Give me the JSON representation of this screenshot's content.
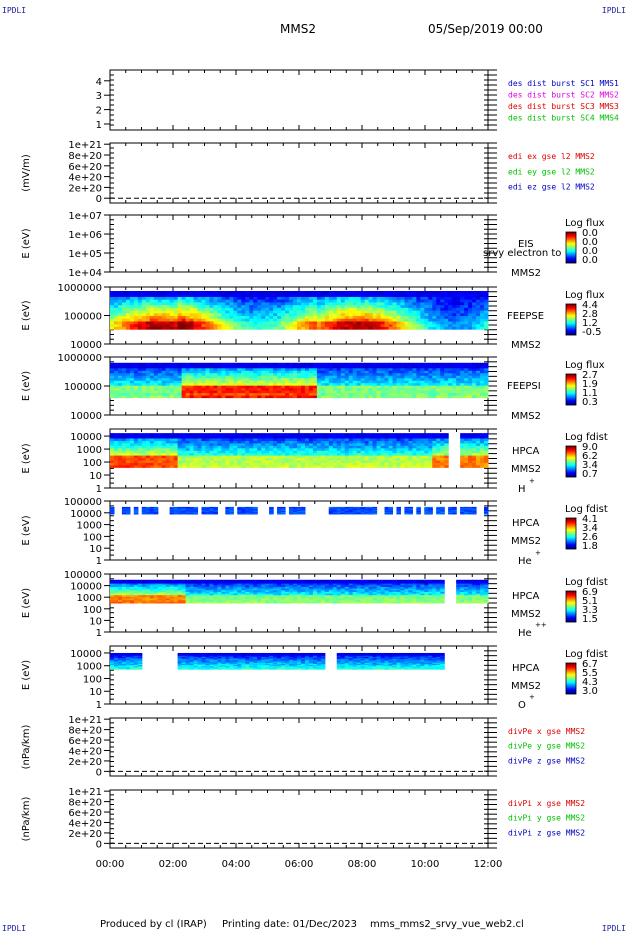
{
  "header": {
    "mission": "MMS2",
    "date": "05/Sep/2019 00:00",
    "corner_label": "IPDLI"
  },
  "footer": {
    "producer": "Produced by cl (IRAP)",
    "printing": "Printing date: 01/Dec/2023",
    "filename": "mms_mms2_srvy_vue_web2.cl"
  },
  "x_axis": {
    "ticks": [
      "00:00",
      "02:00",
      "04:00",
      "06:00",
      "08:00",
      "10:00",
      "12:00"
    ]
  },
  "colors": {
    "blue": "#0000c0",
    "magenta": "#e000e0",
    "red": "#e00000",
    "green": "#00c000"
  },
  "chart_data": [
    {
      "type": "line",
      "id": "burst",
      "y_ticks": [
        "1",
        "2",
        "3",
        "4"
      ],
      "legend": [
        {
          "label": "des dist burst SC1 MMS1",
          "color": "#0000c0"
        },
        {
          "label": "des dist burst SC2 MMS2",
          "color": "#e000e0"
        },
        {
          "label": "des dist burst SC3 MMS3",
          "color": "#e00000"
        },
        {
          "label": "des dist burst SC4 MMS4",
          "color": "#00c000"
        }
      ]
    },
    {
      "type": "line",
      "id": "edi",
      "ylabel": "(mV/m)",
      "y_ticks": [
        "0",
        "2e+20",
        "4e+20",
        "6e+20",
        "8e+20",
        "1e+21"
      ],
      "legend": [
        {
          "label": "edi ex gse l2 MMS2",
          "color": "#e00000"
        },
        {
          "label": "edi ey gse l2 MMS2",
          "color": "#00c000"
        },
        {
          "label": "edi ez gse l2 MMS2",
          "color": "#0000c0"
        }
      ]
    },
    {
      "type": "heatmap",
      "id": "eis",
      "ylabel": "E (eV)",
      "y_ticks": [
        "1e+04",
        "1e+05",
        "1e+06",
        "1e+07"
      ],
      "right_labels": [
        "EIS",
        "MMS2"
      ],
      "overlay": "srvy electron to",
      "colorbar_title": "Log flux",
      "colorbar_ticks": [
        "0.0",
        "0.0",
        "0.0",
        "0.0"
      ]
    },
    {
      "type": "heatmap",
      "id": "feepse",
      "ylabel": "E (eV)",
      "y_ticks": [
        "10000",
        "100000",
        "1000000"
      ],
      "right_labels": [
        "FEEPSE",
        "MMS2"
      ],
      "colorbar_title": "Log flux",
      "colorbar_ticks": [
        "4.4",
        "2.8",
        "1.2",
        "-0.5"
      ]
    },
    {
      "type": "heatmap",
      "id": "feepsi",
      "ylabel": "E (eV)",
      "y_ticks": [
        "10000",
        "100000",
        "1000000"
      ],
      "right_labels": [
        "FEEPSI",
        "MMS2"
      ],
      "colorbar_title": "Log flux",
      "colorbar_ticks": [
        "2.7",
        "1.9",
        "1.1",
        "0.3"
      ]
    },
    {
      "type": "heatmap",
      "id": "hpca_h",
      "ylabel": "E (eV)",
      "y_ticks": [
        "1",
        "10",
        "100",
        "1000",
        "10000"
      ],
      "right_labels": [
        "HPCA",
        "MMS2",
        "H",
        "+"
      ],
      "colorbar_title": "Log fdist",
      "colorbar_ticks": [
        "9.0",
        "6.2",
        "3.4",
        "0.7"
      ]
    },
    {
      "type": "heatmap",
      "id": "hpca_he",
      "ylabel": "E (eV)",
      "y_ticks": [
        "1",
        "10",
        "100",
        "1000",
        "10000",
        "100000"
      ],
      "right_labels": [
        "HPCA",
        "MMS2",
        "He",
        "+"
      ],
      "colorbar_title": "Log fdist",
      "colorbar_ticks": [
        "4.1",
        "3.4",
        "2.6",
        "1.8"
      ]
    },
    {
      "type": "heatmap",
      "id": "hpca_hepp",
      "ylabel": "E (eV)",
      "y_ticks": [
        "1",
        "10",
        "100",
        "1000",
        "10000",
        "100000"
      ],
      "right_labels": [
        "HPCA",
        "MMS2",
        "He",
        "++"
      ],
      "colorbar_title": "Log fdist",
      "colorbar_ticks": [
        "6.9",
        "5.1",
        "3.3",
        "1.5"
      ]
    },
    {
      "type": "heatmap",
      "id": "hpca_o",
      "ylabel": "E (eV)",
      "y_ticks": [
        "1",
        "10",
        "100",
        "1000",
        "10000"
      ],
      "right_labels": [
        "HPCA",
        "MMS2",
        "O",
        "+"
      ],
      "colorbar_title": "Log fdist",
      "colorbar_ticks": [
        "6.7",
        "5.5",
        "4.3",
        "3.0"
      ]
    },
    {
      "type": "line",
      "id": "divpe",
      "ylabel": "(nPa/km)",
      "y_ticks": [
        "0",
        "2e+20",
        "4e+20",
        "6e+20",
        "8e+20",
        "1e+21"
      ],
      "legend": [
        {
          "label": "divPe x gse MMS2",
          "color": "#e00000"
        },
        {
          "label": "divPe y gse MMS2",
          "color": "#00c000"
        },
        {
          "label": "divPe z gse MMS2",
          "color": "#0000c0"
        }
      ]
    },
    {
      "type": "line",
      "id": "divpi",
      "ylabel": "(nPa/km)",
      "y_ticks": [
        "0",
        "2e+20",
        "4e+20",
        "6e+20",
        "8e+20",
        "1e+21"
      ],
      "legend": [
        {
          "label": "divPi x gse MMS2",
          "color": "#e00000"
        },
        {
          "label": "divPi y gse MMS2",
          "color": "#00c000"
        },
        {
          "label": "divPi z gse MMS2",
          "color": "#0000c0"
        }
      ]
    }
  ]
}
